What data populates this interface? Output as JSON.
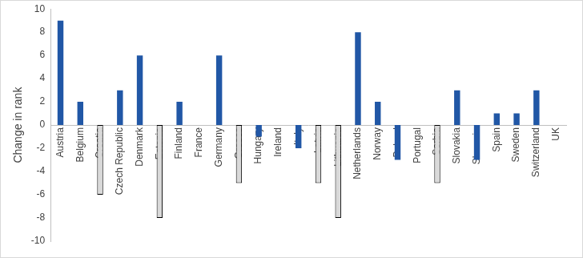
{
  "chart_data": {
    "type": "bar",
    "y_label": "Change in rank",
    "categories": [
      "Austria",
      "Belgium",
      "Croatia",
      "Czech Republic",
      "Denmark",
      "Estonia",
      "Finland",
      "France",
      "Germany",
      "Greece",
      "Hungary",
      "Ireland",
      "Italy",
      "Latvia",
      "Lithuania",
      "Netherlands",
      "Norway",
      "Poland",
      "Portugal",
      "Serbia",
      "Slovakia",
      "Slovenia",
      "Spain",
      "Sweden",
      "Switzerland",
      "UK"
    ],
    "values": [
      9,
      2,
      -6,
      3,
      6,
      -8,
      2,
      0,
      6,
      -5,
      -1,
      0,
      -2,
      -5,
      -8,
      8,
      2,
      -3,
      0,
      -5,
      3,
      -3,
      1,
      1,
      3,
      0
    ],
    "colors": [
      "#2157a6",
      "#2157a6",
      "#d9d9d9",
      "#2157a6",
      "#2157a6",
      "#d9d9d9",
      "#2157a6",
      "#2157a6",
      "#2157a6",
      "#d9d9d9",
      "#2157a6",
      "#2157a6",
      "#2157a6",
      "#d9d9d9",
      "#d9d9d9",
      "#2157a6",
      "#2157a6",
      "#2157a6",
      "#2157a6",
      "#d9d9d9",
      "#2157a6",
      "#2157a6",
      "#2157a6",
      "#2157a6",
      "#2157a6",
      "#2157a6"
    ],
    "ylim": [
      -10,
      10
    ],
    "yticks": [
      -10,
      -8,
      -6,
      -4,
      -2,
      0,
      2,
      4,
      6,
      8,
      10
    ],
    "grid": false
  }
}
